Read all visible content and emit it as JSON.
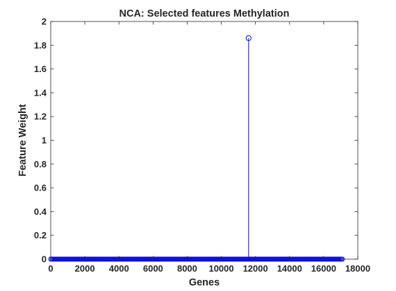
{
  "chart_data": {
    "type": "stem",
    "title": "NCA: Selected features Methylation",
    "xlabel": "Genes",
    "ylabel": "Feature Weight",
    "xlim": [
      0,
      18000
    ],
    "ylim": [
      0,
      2
    ],
    "xticks": [
      0,
      2000,
      4000,
      6000,
      8000,
      10000,
      12000,
      14000,
      16000,
      18000
    ],
    "yticks": [
      0,
      0.2,
      0.4,
      0.6,
      0.8,
      1,
      1.2,
      1.4,
      1.6,
      1.8,
      2
    ],
    "xtick_labels": [
      "0",
      "2000",
      "4000",
      "6000",
      "8000",
      "10000",
      "12000",
      "14000",
      "16000",
      "18000"
    ],
    "ytick_labels": [
      "0",
      "0.2",
      "0.4",
      "0.6",
      "0.8",
      "1",
      "1.2",
      "1.4",
      "1.6",
      "1.8",
      "2"
    ],
    "baseline_feature_range": [
      0,
      17100
    ],
    "baseline_weight": 0,
    "selected_features": [
      {
        "x": 11600,
        "y": 1.86
      }
    ],
    "grid": false,
    "box": true,
    "marker": "circle-open",
    "color": "#0000ff",
    "axes_color": "#262626"
  }
}
